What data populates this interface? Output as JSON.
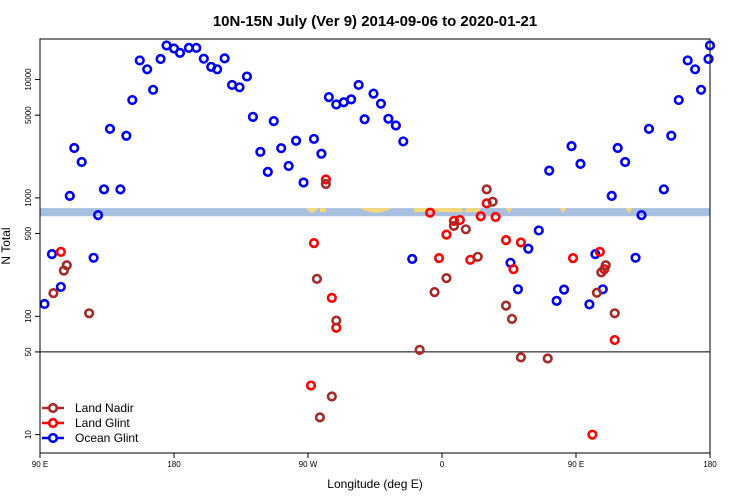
{
  "chart_data": {
    "type": "scatter",
    "title": "10N-15N July (Ver 9)   2014-09-06 to 2020-01-21",
    "xlabel": "Longitude (deg E)",
    "ylabel": "N Total",
    "y_scale": "log",
    "xlim": [
      90,
      540
    ],
    "ylim": [
      7,
      22000
    ],
    "x_ticks": [
      {
        "value": 90,
        "label": "90 E"
      },
      {
        "value": 180,
        "label": "180"
      },
      {
        "value": 270,
        "label": "90 W"
      },
      {
        "value": 360,
        "label": "0"
      },
      {
        "value": 450,
        "label": "90 E"
      },
      {
        "value": 540,
        "label": "180"
      }
    ],
    "y_ticks": [
      {
        "value": 10,
        "label": "10"
      },
      {
        "value": 50,
        "label": "50"
      },
      {
        "value": 100,
        "label": "100"
      },
      {
        "value": 500,
        "label": "500"
      },
      {
        "value": 1000,
        "label": "1000"
      },
      {
        "value": 5000,
        "label": "5000"
      },
      {
        "value": 10000,
        "label": "10000"
      }
    ],
    "reference_line_y": 50,
    "band": {
      "y_low": 700,
      "y_high": 820,
      "color": "#a8bfe0",
      "land_color": "#f7d87a"
    },
    "legend": [
      {
        "name": "Land Nadir",
        "color": "#a52a2a"
      },
      {
        "name": "Land Glint",
        "color": "#ff0000"
      },
      {
        "name": "Ocean Glint",
        "color": "#0000ee"
      }
    ],
    "series": [
      {
        "name": "Ocean Glint",
        "color": "#0000ee",
        "points": [
          [
            93,
            127
          ],
          [
            98,
            335
          ],
          [
            104,
            177
          ],
          [
            110,
            1040
          ],
          [
            113,
            2640
          ],
          [
            118,
            2010
          ],
          [
            126,
            312
          ],
          [
            129,
            715
          ],
          [
            133,
            1180
          ],
          [
            137,
            3830
          ],
          [
            144,
            1180
          ],
          [
            148,
            3350
          ],
          [
            152,
            6710
          ],
          [
            157,
            14500
          ],
          [
            162,
            12200
          ],
          [
            166,
            8190
          ],
          [
            171,
            14900
          ],
          [
            175,
            19400
          ],
          [
            180,
            18300
          ],
          [
            184,
            16800
          ],
          [
            190,
            18500
          ],
          [
            195,
            18500
          ],
          [
            200,
            15000
          ],
          [
            205,
            12800
          ],
          [
            209,
            12200
          ],
          [
            214,
            15100
          ],
          [
            219,
            9000
          ],
          [
            224,
            8600
          ],
          [
            229,
            10600
          ],
          [
            233,
            4840
          ],
          [
            238,
            2450
          ],
          [
            243,
            1660
          ],
          [
            247,
            4450
          ],
          [
            252,
            2630
          ],
          [
            257,
            1860
          ],
          [
            262,
            3040
          ],
          [
            267,
            1350
          ],
          [
            274,
            3150
          ],
          [
            279,
            2360
          ],
          [
            284,
            7100
          ],
          [
            289,
            6150
          ],
          [
            294,
            6430
          ],
          [
            299,
            6800
          ],
          [
            304,
            9000
          ],
          [
            308,
            4620
          ],
          [
            314,
            7600
          ],
          [
            319,
            6250
          ],
          [
            324,
            4660
          ],
          [
            329,
            4090
          ],
          [
            334,
            3000
          ],
          [
            340,
            305
          ],
          [
            406,
            283
          ],
          [
            411,
            169
          ],
          [
            418,
            372
          ],
          [
            425,
            531
          ],
          [
            432,
            1700
          ],
          [
            437,
            135
          ],
          [
            442,
            168
          ],
          [
            447,
            2740
          ],
          [
            453,
            1940
          ],
          [
            459,
            126
          ],
          [
            463,
            335
          ],
          [
            468,
            169
          ],
          [
            474,
            1040
          ],
          [
            478,
            2640
          ],
          [
            483,
            2010
          ],
          [
            490,
            312
          ],
          [
            494,
            715
          ],
          [
            499,
            3830
          ],
          [
            509,
            1180
          ],
          [
            514,
            3350
          ],
          [
            519,
            6710
          ],
          [
            525,
            14500
          ],
          [
            530,
            12200
          ],
          [
            534,
            8190
          ],
          [
            539,
            14900
          ],
          [
            544,
            19400
          ]
        ]
      },
      {
        "name": "Land Glint",
        "color": "#ff0000",
        "points": [
          [
            104,
            350
          ],
          [
            272,
            26
          ],
          [
            274,
            415
          ],
          [
            282,
            1430
          ],
          [
            286,
            143
          ],
          [
            289,
            80
          ],
          [
            352,
            750
          ],
          [
            358,
            310
          ],
          [
            363,
            490
          ],
          [
            368,
            640
          ],
          [
            372,
            650
          ],
          [
            379,
            300
          ],
          [
            386,
            700
          ],
          [
            390,
            900
          ],
          [
            396,
            690
          ],
          [
            403,
            440
          ],
          [
            408,
            250
          ],
          [
            413,
            420
          ],
          [
            448,
            310
          ],
          [
            461,
            10
          ],
          [
            466,
            350
          ],
          [
            469,
            250
          ],
          [
            476,
            63
          ]
        ]
      },
      {
        "name": "Land Nadir",
        "color": "#a52a2a",
        "points": [
          [
            99,
            157
          ],
          [
            106,
            243
          ],
          [
            108,
            270
          ],
          [
            123,
            106
          ],
          [
            276,
            207
          ],
          [
            278,
            14
          ],
          [
            282,
            1310
          ],
          [
            286,
            21
          ],
          [
            289,
            92
          ],
          [
            345,
            52
          ],
          [
            355,
            160
          ],
          [
            363,
            210
          ],
          [
            368,
            580
          ],
          [
            376,
            543
          ],
          [
            384,
            318
          ],
          [
            390,
            1180
          ],
          [
            394,
            929
          ],
          [
            403,
            123
          ],
          [
            407,
            95
          ],
          [
            413,
            45
          ],
          [
            431,
            44
          ],
          [
            464,
            158
          ],
          [
            467,
            235
          ],
          [
            470,
            270
          ],
          [
            476,
            106
          ]
        ]
      }
    ]
  }
}
